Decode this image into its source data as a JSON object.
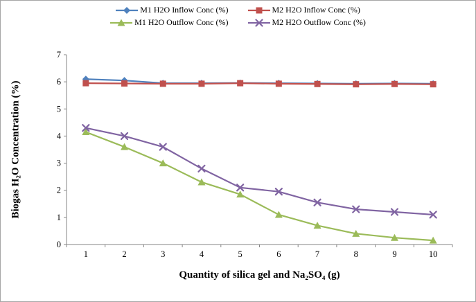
{
  "figure": {
    "border_color": "#a6a6a6",
    "background": "#ffffff"
  },
  "chart_data": {
    "type": "line",
    "x": [
      1,
      2,
      3,
      4,
      5,
      6,
      7,
      8,
      9,
      10
    ],
    "xlabel": "Quantity of silica gel and Na₂SO₄ (g)",
    "ylabel": "Biogas H₂O Concentration (%)",
    "ylim": [
      0,
      7
    ],
    "y_ticks": [
      0,
      1,
      2,
      3,
      4,
      5,
      6,
      7
    ],
    "grid": false,
    "legend_position": "top",
    "axis_color": "#868686",
    "series": [
      {
        "name": "M1 H2O Inflow Conc (%)",
        "marker": "diamond",
        "color": "#4F81BD",
        "values": [
          6.1,
          6.05,
          5.95,
          5.95,
          5.96,
          5.95,
          5.94,
          5.93,
          5.94,
          5.93
        ]
      },
      {
        "name": "M2 H2O Inflow Conc (%)",
        "marker": "square",
        "color": "#C0504D",
        "values": [
          5.95,
          5.94,
          5.93,
          5.93,
          5.95,
          5.93,
          5.92,
          5.91,
          5.92,
          5.91
        ]
      },
      {
        "name": "M1 H2O Outflow Conc (%)",
        "marker": "triangle",
        "color": "#9BBB59",
        "values": [
          4.15,
          3.6,
          3.0,
          2.3,
          1.85,
          1.1,
          0.7,
          0.4,
          0.25,
          0.15
        ]
      },
      {
        "name": "M2 H2O Outflow Conc (%)",
        "marker": "x",
        "color": "#8064A2",
        "values": [
          4.3,
          4.0,
          3.6,
          2.8,
          2.1,
          1.95,
          1.55,
          1.3,
          1.2,
          1.1
        ]
      }
    ]
  }
}
